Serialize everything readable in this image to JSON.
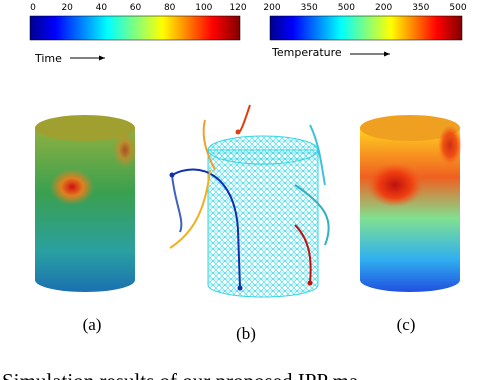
{
  "colorbars": [
    {
      "ticks": [
        "0",
        "20",
        "40",
        "60",
        "80",
        "100",
        "120"
      ],
      "label": "Time"
    },
    {
      "ticks": [
        "200",
        "350",
        "500",
        "200",
        "350",
        "500"
      ],
      "label": "Temperature"
    }
  ],
  "panels": [
    "(a)",
    "(b)",
    "(c)"
  ],
  "caption": "Simulation results of our proposed IPP ma"
}
